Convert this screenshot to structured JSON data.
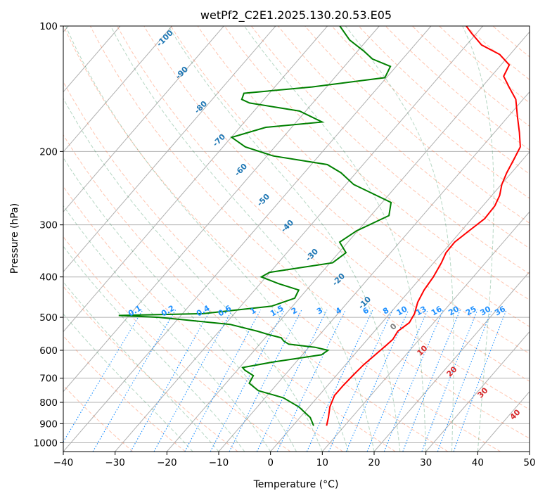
{
  "chart_data": {
    "type": "line",
    "diagram": "skew-T log-P",
    "title": "wetPf2_C2E1.2025.130.20.53.E05",
    "xlabel": "Temperature (°C)",
    "ylabel": "Pressure (hPa)",
    "xlim": [
      -40,
      50
    ],
    "ylim": [
      1050,
      100
    ],
    "y_scale": "log",
    "grid": true,
    "x_ticks": [
      -40,
      -30,
      -20,
      -10,
      0,
      10,
      20,
      30,
      40,
      50
    ],
    "y_ticks": [
      100,
      200,
      300,
      400,
      500,
      600,
      700,
      800,
      900,
      1000
    ],
    "series": [
      {
        "color": "#ff0000",
        "points": [
          [
            6.5,
            910
          ],
          [
            5.5,
            870
          ],
          [
            4.0,
            820
          ],
          [
            3.0,
            770
          ],
          [
            3.0,
            730
          ],
          [
            3.2,
            690
          ],
          [
            3.5,
            650
          ],
          [
            4.0,
            620
          ],
          [
            4.6,
            585
          ],
          [
            4.9,
            565
          ],
          [
            4.5,
            540
          ],
          [
            5.3,
            515
          ],
          [
            4.8,
            490
          ],
          [
            3.5,
            460
          ],
          [
            2.7,
            430
          ],
          [
            2.3,
            400
          ],
          [
            1.5,
            370
          ],
          [
            0.7,
            350
          ],
          [
            0.6,
            330
          ],
          [
            1.5,
            310
          ],
          [
            2.5,
            290
          ],
          [
            2.3,
            270
          ],
          [
            1.5,
            255
          ],
          [
            0.1,
            240
          ],
          [
            -0.9,
            225
          ],
          [
            -1.7,
            210
          ],
          [
            -2.6,
            195
          ],
          [
            -5.2,
            180
          ],
          [
            -8.2,
            165
          ],
          [
            -11.4,
            150
          ],
          [
            -14.8,
            140
          ],
          [
            -17.6,
            132
          ],
          [
            -18.4,
            124
          ],
          [
            -22.0,
            117
          ],
          [
            -27.1,
            111
          ],
          [
            -31.0,
            104
          ],
          [
            -33.2,
            100
          ]
        ]
      },
      {
        "color": "#008000",
        "points": [
          [
            4.0,
            910
          ],
          [
            2.0,
            870
          ],
          [
            -2.0,
            820
          ],
          [
            -6.5,
            780
          ],
          [
            -12.5,
            750
          ],
          [
            -15.5,
            720
          ],
          [
            -16.0,
            690
          ],
          [
            -18.5,
            670
          ],
          [
            -19.4,
            660
          ],
          [
            -14.4,
            640
          ],
          [
            -6.3,
            615
          ],
          [
            -5.8,
            600
          ],
          [
            -8.8,
            590
          ],
          [
            -14.4,
            580
          ],
          [
            -15.9,
            570
          ],
          [
            -16.9,
            560
          ],
          [
            -19.9,
            550
          ],
          [
            -22.6,
            540
          ],
          [
            -29.0,
            520
          ],
          [
            -44.0,
            500
          ],
          [
            -52.0,
            495
          ],
          [
            -36.0,
            490
          ],
          [
            -24.0,
            470
          ],
          [
            -20.9,
            450
          ],
          [
            -21.5,
            430
          ],
          [
            -26.5,
            415
          ],
          [
            -30.9,
            400
          ],
          [
            -30.1,
            390
          ],
          [
            -19.5,
            370
          ],
          [
            -18.6,
            350
          ],
          [
            -21.6,
            330
          ],
          [
            -20.2,
            310
          ],
          [
            -16.5,
            285
          ],
          [
            -18.3,
            265
          ],
          [
            -28.5,
            240
          ],
          [
            -32.9,
            225
          ],
          [
            -36.9,
            215
          ],
          [
            -48.8,
            205
          ],
          [
            -55.7,
            195
          ],
          [
            -59.9,
            185
          ],
          [
            -55.0,
            175
          ],
          [
            -45.0,
            170
          ],
          [
            -51.2,
            160
          ],
          [
            -62.2,
            153
          ],
          [
            -64.3,
            150
          ],
          [
            -64.9,
            145
          ],
          [
            -52.8,
            140
          ],
          [
            -40.3,
            133
          ],
          [
            -41.1,
            125
          ],
          [
            -45.8,
            120
          ],
          [
            -48.7,
            115
          ],
          [
            -53.4,
            108
          ],
          [
            -57.6,
            100
          ]
        ]
      }
    ],
    "dry_adiabat_labels": [
      "-100",
      "-90",
      "-80",
      "-70",
      "-60",
      "-50",
      "-40",
      "-30",
      "-20",
      "-10",
      "0",
      "10",
      "20",
      "30",
      "40"
    ],
    "mixing_ratio_labels": [
      "0.1",
      "0.2",
      "0.4",
      "0.6",
      "1",
      "1.5",
      "2",
      "3",
      "4",
      "6",
      "8",
      "10",
      "13",
      "16",
      "20",
      "25",
      "30",
      "36"
    ]
  }
}
